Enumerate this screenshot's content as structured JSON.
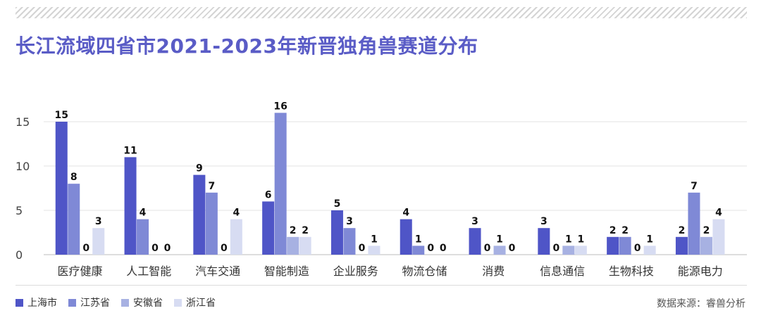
{
  "title": "长江流域四省市2021-2023年新晋独角兽赛道分布",
  "source": "数据来源：睿兽分析",
  "colors": [
    "#4f55c7",
    "#7f89d6",
    "#a7b1e2",
    "#d7dcf2"
  ],
  "chart_data": {
    "type": "bar",
    "title": "长江流域四省市2021-2023年新晋独角兽赛道分布",
    "categories": [
      "医疗健康",
      "人工智能",
      "汽车交通",
      "智能制造",
      "企业服务",
      "物流仓储",
      "消费",
      "信息通信",
      "生物科技",
      "能源电力"
    ],
    "series": [
      {
        "name": "上海市",
        "values": [
          15,
          11,
          9,
          6,
          5,
          4,
          3,
          3,
          2,
          2
        ]
      },
      {
        "name": "江苏省",
        "values": [
          8,
          4,
          7,
          16,
          3,
          1,
          0,
          0,
          2,
          7
        ]
      },
      {
        "name": "安徽省",
        "values": [
          0,
          0,
          0,
          2,
          0,
          0,
          1,
          1,
          0,
          2
        ]
      },
      {
        "name": "浙江省",
        "values": [
          3,
          0,
          4,
          2,
          1,
          0,
          0,
          1,
          1,
          4
        ]
      }
    ],
    "yticks": [
      0,
      5,
      10,
      15
    ],
    "ylim": [
      0,
      17
    ],
    "grid": true,
    "legend_position": "bottom-left"
  }
}
